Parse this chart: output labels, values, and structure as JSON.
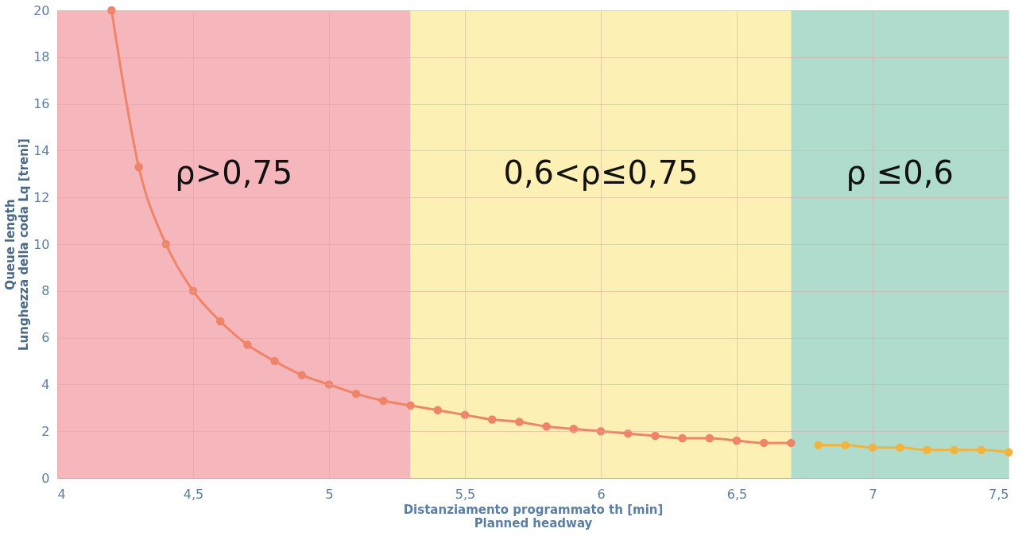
{
  "chart_data": {
    "type": "line",
    "xlabel": "Distanziamento programmato th [min]\nPlanned headway",
    "ylabel": "Queue length\nLunghezza della coda Lq [treni]",
    "xlim": [
      4,
      7.5
    ],
    "xticks": [
      4,
      {
        "value": 4.5,
        "label": "4,5"
      },
      5,
      {
        "value": 5.5,
        "label": "5,5"
      },
      6,
      {
        "value": 6.5,
        "label": "6,5"
      },
      7,
      {
        "value": 7.5,
        "label": "7,5"
      }
    ],
    "ylim": [
      0,
      20
    ],
    "yticks": [
      0,
      2,
      4,
      6,
      8,
      10,
      12,
      14,
      16,
      18,
      20
    ],
    "grid": true,
    "marker": "circle",
    "line_style": "solid",
    "series": [
      {
        "color": "#ef8468",
        "x": [
          4.2,
          4.3,
          4.4,
          4.5,
          4.6,
          4.7,
          4.8,
          4.9,
          5.0,
          5.1,
          5.2,
          5.3,
          5.4,
          5.5,
          5.6,
          5.7,
          5.8,
          5.9,
          6.0,
          6.1,
          6.2,
          6.3,
          6.4,
          6.5,
          6.6,
          6.7
        ],
        "values": [
          20,
          13.3,
          10,
          8,
          6.7,
          5.7,
          5,
          4.4,
          4,
          3.6,
          3.3,
          3.1,
          2.9,
          2.7,
          2.5,
          2.4,
          2.2,
          2.1,
          2,
          1.9,
          1.8,
          1.7,
          1.7,
          1.6,
          1.5,
          1.5
        ]
      },
      {
        "color": "#f3b33d",
        "x": [
          6.8,
          6.9,
          7.0,
          7.1,
          7.2,
          7.3,
          7.4,
          7.5
        ],
        "values": [
          1.4,
          1.4,
          1.3,
          1.3,
          1.2,
          1.2,
          1.2,
          1.1
        ]
      }
    ],
    "bands": [
      {
        "axis": "x",
        "from": 4,
        "to": 5.3,
        "label": "ρ>0,75",
        "color": "#f5b7bc"
      },
      {
        "axis": "x",
        "from": 5.3,
        "to": 6.7,
        "label": "0,6<ρ≤0,75",
        "color": "#fdf0b4"
      },
      {
        "axis": "x",
        "from": 6.7,
        "to": 7.5,
        "label": "ρ ≤0,6",
        "color": "#b0dccd"
      }
    ]
  }
}
